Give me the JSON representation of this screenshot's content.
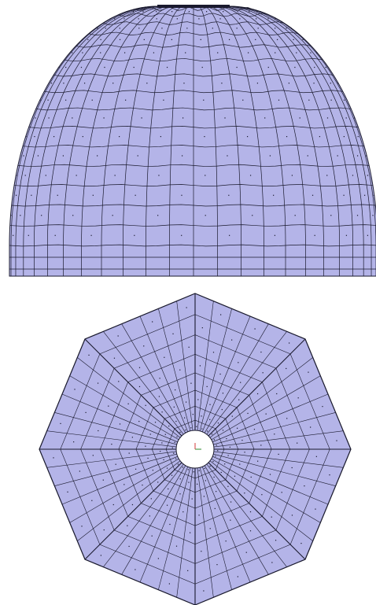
{
  "views": [
    {
      "id": "elevation",
      "kind": "dome-elevation-mesh",
      "meridian_divisions": 24,
      "ring_divisions": 16,
      "base_band_rows": 2
    },
    {
      "id": "plan",
      "kind": "octagonal-plan-mesh",
      "sides": 8,
      "radial_divisions": 8,
      "ribs_per_side": 6,
      "oculus": true
    }
  ],
  "colors": {
    "shell_fill": "#b4b4e8",
    "mesh_line": "#1a1a2e",
    "node_dot": "#1a1a2e",
    "oculus_fill": "#ffffff",
    "axis_x": "#2e8b2e",
    "axis_y": "#d43a3a"
  }
}
